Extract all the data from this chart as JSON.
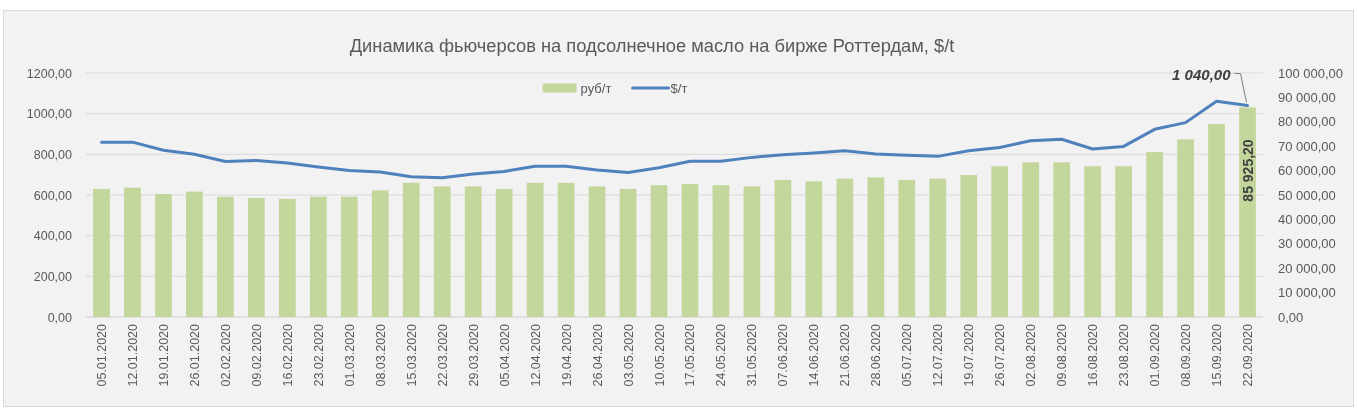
{
  "chart_data": {
    "type": "bar",
    "title": "Динамика фьючерсов на подсолнечное масло на бирже Роттердам, $/t",
    "categories": [
      "05.01.2020",
      "12.01.2020",
      "19.01.2020",
      "26.01.2020",
      "02.02.2020",
      "09.02.2020",
      "16.02.2020",
      "23.02.2020",
      "01.03.2020",
      "08.03.2020",
      "15.03.2020",
      "22.03.2020",
      "29.03.2020",
      "05.04.2020",
      "12.04.2020",
      "19.04.2020",
      "26.04.2020",
      "03.05.2020",
      "10.05.2020",
      "17.05.2020",
      "24.05.2020",
      "31.05.2020",
      "07.06.2020",
      "14.06.2020",
      "21.06.2020",
      "28.06.2020",
      "05.07.2020",
      "12.07.2020",
      "19.07.2020",
      "26.07.2020",
      "02.08.2020",
      "09.08.2020",
      "16.08.2020",
      "23.08.2020",
      "01.09.2020",
      "08.09.2020",
      "15.09.2020",
      "22.09.2020"
    ],
    "series": [
      {
        "name": "руб/т",
        "axis": "y2",
        "color": "#c3d69b",
        "values": [
          52500,
          53000,
          50400,
          51400,
          49300,
          48800,
          48400,
          49300,
          49300,
          51900,
          55000,
          53500,
          53500,
          52500,
          55000,
          55000,
          53500,
          52500,
          54000,
          54500,
          54000,
          53500,
          56200,
          55600,
          56700,
          57200,
          56200,
          56700,
          58200,
          61800,
          63400,
          63400,
          61800,
          61800,
          67600,
          72800,
          79100,
          85925.2
        ],
        "value_labels": [
          null,
          null,
          null,
          null,
          null,
          null,
          null,
          null,
          null,
          null,
          null,
          null,
          null,
          null,
          null,
          null,
          null,
          null,
          null,
          null,
          null,
          null,
          null,
          null,
          null,
          null,
          null,
          null,
          null,
          null,
          null,
          null,
          null,
          null,
          null,
          null,
          null,
          "85 925,20"
        ]
      },
      {
        "name": "$/т",
        "type": "line",
        "axis": "y",
        "color": "#4f81bd",
        "values": [
          860,
          860,
          820,
          800,
          765,
          770,
          757,
          738,
          720,
          713,
          690,
          685,
          703,
          716,
          741,
          741,
          723,
          711,
          734,
          766,
          766,
          785,
          798,
          807,
          818,
          802,
          795,
          790,
          818,
          834,
          867,
          874,
          826,
          839,
          923,
          956,
          1061,
          1040
        ],
        "value_labels": [
          null,
          null,
          null,
          null,
          null,
          null,
          null,
          null,
          null,
          null,
          null,
          null,
          null,
          null,
          null,
          null,
          null,
          null,
          null,
          null,
          null,
          null,
          null,
          null,
          null,
          null,
          null,
          null,
          null,
          null,
          null,
          null,
          null,
          null,
          null,
          null,
          null,
          "1 040,00"
        ]
      }
    ],
    "ylim": [
      0,
      1200
    ],
    "yticks": [
      {
        "value": 0,
        "label": "0,00"
      },
      {
        "value": 200,
        "label": "200,00"
      },
      {
        "value": 400,
        "label": "400,00"
      },
      {
        "value": 600,
        "label": "600,00"
      },
      {
        "value": 800,
        "label": "800,00"
      },
      {
        "value": 1000,
        "label": "1000,00"
      },
      {
        "value": 1200,
        "label": "1200,00"
      }
    ],
    "y2lim": [
      0,
      100000
    ],
    "y2ticks": [
      {
        "value": 0,
        "label": "0,00"
      },
      {
        "value": 10000,
        "label": "10 000,00"
      },
      {
        "value": 20000,
        "label": "20 000,00"
      },
      {
        "value": 30000,
        "label": "30 000,00"
      },
      {
        "value": 40000,
        "label": "40 000,00"
      },
      {
        "value": 50000,
        "label": "50 000,00"
      },
      {
        "value": 60000,
        "label": "60 000,00"
      },
      {
        "value": 70000,
        "label": "70 000,00"
      },
      {
        "value": 80000,
        "label": "80 000,00"
      },
      {
        "value": 90000,
        "label": "90 000,00"
      },
      {
        "value": 100000,
        "label": "100 000,00"
      }
    ],
    "grid": "y",
    "legend": "top"
  }
}
